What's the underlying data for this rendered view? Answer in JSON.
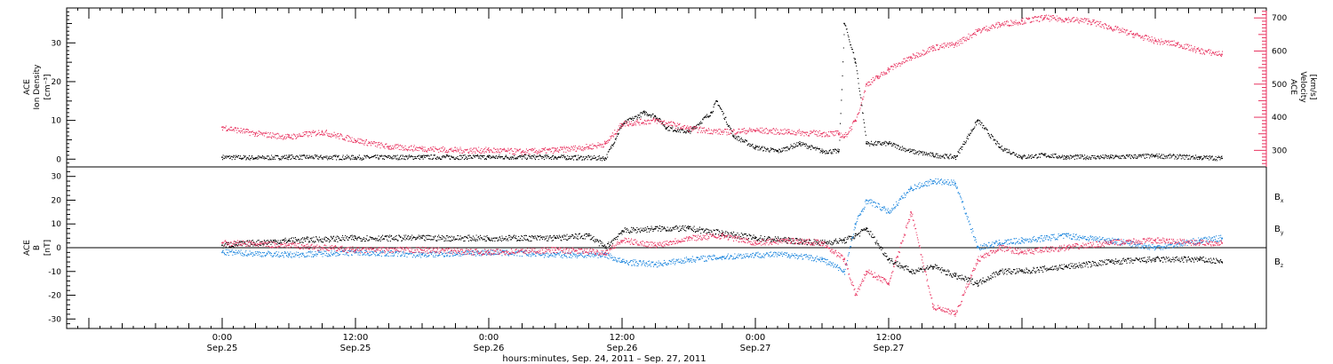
{
  "chart_data": [
    {
      "type": "scatter",
      "title": "",
      "ylabel_left": [
        "ACE",
        "Ion Density",
        "[cm⁻³]"
      ],
      "ylabel_right": [
        "ACE",
        "Velocity",
        "[km/s]"
      ],
      "ylim_left": [
        -2,
        39
      ],
      "ylim_right": [
        250,
        730
      ],
      "left_ticks": [
        "0",
        "10",
        "20",
        "30"
      ],
      "right_ticks": [
        "300",
        "400",
        "500",
        "600",
        "700"
      ],
      "series": [
        {
          "name": "",
          "axis": "left",
          "color": "#000000",
          "x": [
            0,
            3,
            6,
            12,
            18,
            24,
            30,
            34.5,
            36,
            38,
            39,
            40,
            42,
            44,
            44.5,
            46,
            48,
            50,
            52,
            54,
            55.5,
            56,
            57,
            58,
            60,
            62,
            64,
            66,
            68,
            70,
            72,
            74,
            76,
            80,
            84,
            88,
            90
          ],
          "y": [
            0.5,
            0.3,
            0.5,
            0.4,
            0.5,
            0.5,
            0.5,
            0.2,
            9,
            12,
            11,
            8,
            7,
            12,
            15,
            6,
            3,
            2,
            4,
            2,
            2,
            35,
            25,
            4,
            4,
            2,
            1,
            0.5,
            10,
            3,
            0.5,
            1,
            0.5,
            0.5,
            0.8,
            0.4,
            0.2
          ]
        },
        {
          "name": "",
          "axis": "right",
          "color": "#e8325f",
          "x": [
            0,
            3,
            6,
            9,
            12,
            15,
            18,
            21,
            24,
            27,
            30,
            33,
            34.5,
            36,
            39,
            42,
            45,
            48,
            51,
            54,
            55.5,
            56,
            57,
            58,
            59,
            60,
            62,
            64,
            66,
            68,
            70,
            72,
            74,
            76,
            78,
            80,
            82,
            84,
            86,
            88,
            90
          ],
          "y": [
            370,
            350,
            340,
            355,
            330,
            310,
            305,
            300,
            300,
            295,
            300,
            310,
            320,
            380,
            390,
            365,
            355,
            360,
            355,
            350,
            350,
            340,
            390,
            500,
            520,
            545,
            580,
            610,
            620,
            660,
            680,
            690,
            700,
            695,
            690,
            670,
            650,
            630,
            620,
            600,
            590
          ]
        }
      ]
    },
    {
      "type": "scatter",
      "title": "",
      "ylabel": [
        "ACE",
        "B",
        "[nT]"
      ],
      "ylim": [
        -34,
        34
      ],
      "y_ticks": [
        "-30",
        "-20",
        "-10",
        "0",
        "10",
        "20",
        "30"
      ],
      "legend_position": "right",
      "series": [
        {
          "name": "Bx",
          "name_main": "B",
          "name_sub": "x",
          "color": "#000000",
          "x": [
            0,
            6,
            12,
            18,
            24,
            30,
            33,
            34.5,
            36,
            39,
            42,
            45,
            48,
            51,
            54,
            56,
            57,
            58,
            60,
            62,
            64,
            66,
            68,
            70,
            72,
            76,
            80,
            84,
            88,
            90
          ],
          "y": [
            1,
            3,
            4,
            4,
            4,
            4,
            5,
            0,
            7,
            8,
            8,
            6,
            4,
            3,
            2,
            3,
            5,
            8,
            -5,
            -10,
            -8,
            -12,
            -15,
            -10,
            -10,
            -8,
            -6,
            -5,
            -5,
            -6
          ]
        },
        {
          "name": "By",
          "name_main": "B",
          "name_sub": "y",
          "color": "#1f87de",
          "x": [
            0,
            6,
            12,
            18,
            24,
            30,
            34.5,
            36,
            39,
            42,
            45,
            48,
            51,
            54,
            56,
            57,
            58,
            60,
            62,
            64,
            66,
            68,
            70,
            72,
            76,
            80,
            84,
            88,
            90
          ],
          "y": [
            -2,
            -3,
            -2,
            -3,
            -2,
            -3,
            -3,
            -6,
            -7,
            -5,
            -4,
            -3,
            -3,
            -5,
            -10,
            10,
            20,
            15,
            25,
            28,
            27,
            0,
            2,
            3,
            5,
            3,
            0,
            3,
            4
          ]
        },
        {
          "name": "Bz",
          "name_main": "B",
          "name_sub": "z",
          "color": "#e8325f",
          "x": [
            0,
            6,
            12,
            18,
            24,
            30,
            34.5,
            36,
            39,
            42,
            45,
            48,
            51,
            54,
            56,
            57,
            58,
            60,
            62,
            64,
            66,
            68,
            70,
            72,
            76,
            80,
            84,
            88,
            90
          ],
          "y": [
            2,
            1,
            -1,
            -1,
            -2,
            -1,
            -2,
            3,
            1,
            4,
            5,
            2,
            3,
            2,
            -5,
            -20,
            -10,
            -15,
            15,
            -25,
            -28,
            -5,
            0,
            -2,
            0,
            2,
            3,
            2,
            2
          ]
        }
      ]
    }
  ],
  "x_axis": {
    "range_hours": [
      -14,
      94
    ],
    "tick_hours": [
      0,
      12,
      24,
      36,
      48,
      60,
      72,
      84
    ],
    "tick_time_labels": [
      "0:00",
      "12:00",
      "0:00",
      "12:00",
      "0:00",
      "12:00"
    ],
    "tick_date_labels": [
      "Sep.25",
      "Sep.25",
      "Sep.26",
      "Sep.26",
      "Sep.27",
      "Sep.27"
    ],
    "label_hours": [
      0,
      12,
      24,
      36,
      48,
      60
    ],
    "xlabel": "hours:minutes, Sep. 24, 2011 – Sep. 27, 2011"
  }
}
